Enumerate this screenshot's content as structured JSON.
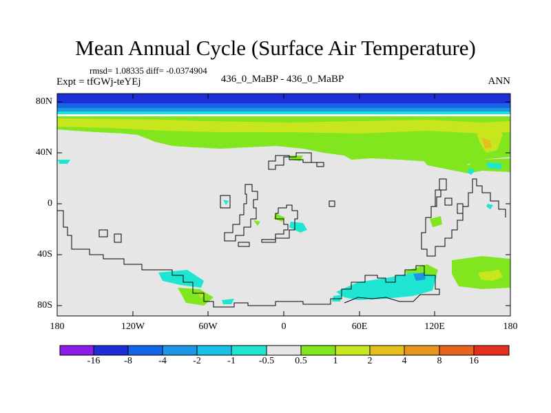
{
  "title": "Mean Annual Cycle (Surface Air Temperature)",
  "stats": "rmsd= 1.08335 diff= -0.0374904",
  "experiment": "Expt = tfGWj-teYEj",
  "subtitle": "436_0_MaBP - 436_0_MaBP",
  "season": "ANN",
  "lat_labels": [
    "80N",
    "40N",
    "0",
    "40S",
    "80S"
  ],
  "lon_labels": [
    "180",
    "120W",
    "60W",
    "0",
    "60E",
    "120E",
    "180"
  ],
  "colorbar": {
    "labels": [
      "-16",
      "-8",
      "-4",
      "-2",
      "-1",
      "-0.5",
      "0.5",
      "1",
      "2",
      "4",
      "8",
      "16"
    ],
    "colors": [
      "#8b1ee6",
      "#1e2ed6",
      "#1466e6",
      "#1e96e6",
      "#18c2e6",
      "#1ee6d2",
      "#e6e6e6",
      "#82e61e",
      "#c8e61e",
      "#e6be1e",
      "#e6961e",
      "#e6641e",
      "#e62e1e"
    ]
  }
}
